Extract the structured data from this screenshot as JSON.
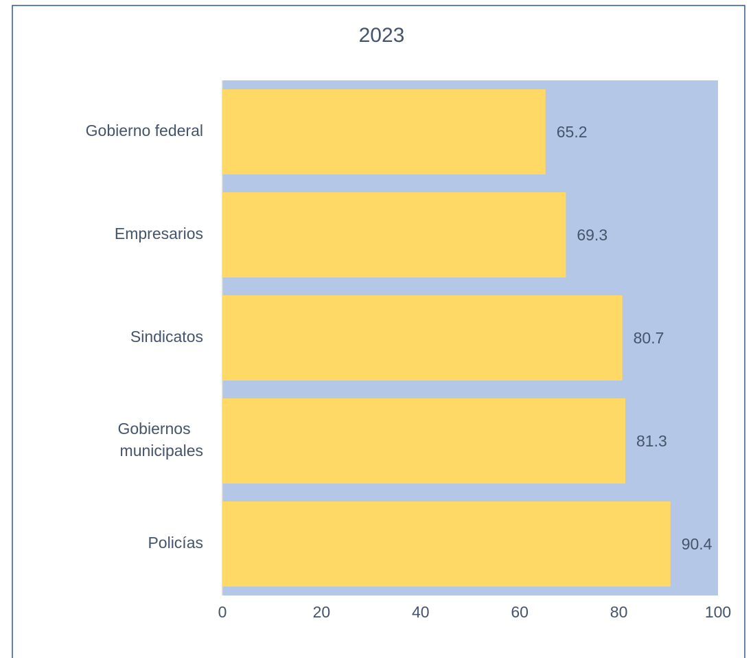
{
  "chart_data": {
    "type": "barh",
    "title": "2023",
    "categories": [
      "Gobierno federal",
      "Empresarios",
      "Sindicatos",
      "Gobiernos municipales",
      "Policías"
    ],
    "values": [
      65.2,
      69.3,
      80.7,
      81.3,
      90.4
    ],
    "color": "#ffd966",
    "plot_background": "#b4c7e7",
    "xlim": [
      0,
      100
    ],
    "xticks": [
      0,
      20,
      40,
      60,
      80,
      100
    ],
    "grid": false
  }
}
